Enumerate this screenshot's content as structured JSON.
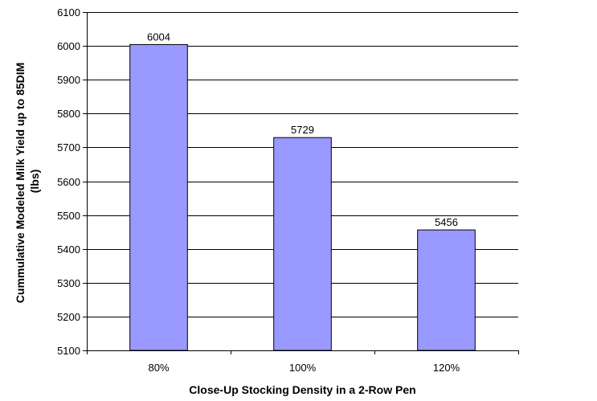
{
  "chart_data": {
    "type": "bar",
    "title": "",
    "categories": [
      "80%",
      "100%",
      "120%"
    ],
    "values": [
      6004,
      5729,
      5456
    ],
    "data_labels": [
      "6004",
      "5729",
      "5456"
    ],
    "xlabel": "Close-Up Stocking Density in a 2-Row Pen",
    "ylabel_lines": [
      "Cummulative Modeled Milk Yield up to 85DIM",
      "(lbs)"
    ],
    "ylim": [
      5100,
      6100
    ],
    "yticks": [
      5100,
      5200,
      5300,
      5400,
      5500,
      5600,
      5700,
      5800,
      5900,
      6000,
      6100
    ],
    "ytick_labels": [
      "5100",
      "5200",
      "5300",
      "5400",
      "5500",
      "5600",
      "5700",
      "5800",
      "5900",
      "6000",
      "6100"
    ],
    "grid": "horizontal",
    "legend": "none",
    "colors": {
      "bar_fill": "#9999ff",
      "bar_stroke": "#000000",
      "grid": "#000000",
      "axis": "#000000"
    }
  }
}
